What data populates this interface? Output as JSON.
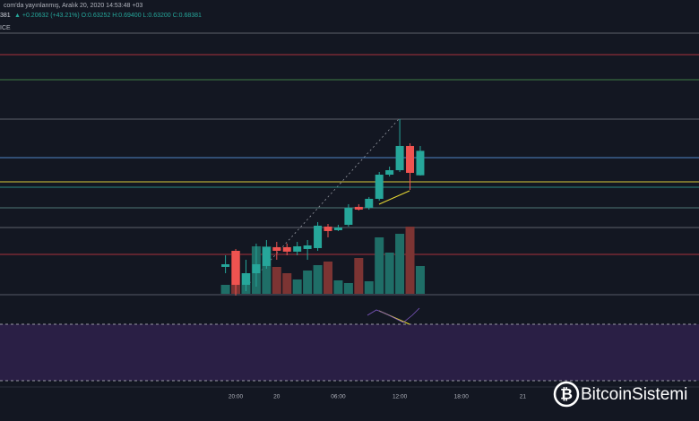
{
  "header": {
    "published": "com'da yayınlanmış, Aralık 20, 2020 14:53:48 +03",
    "last": "381",
    "change": "▲ +0.20632 (+43.21%) O:0.63252 H:0.69400 L:0.63200 C:0.68381",
    "pane_label": "ICE"
  },
  "watermark": "BitcoinSistemi",
  "chart_data": {
    "type": "candlestick",
    "categories": [
      null,
      "20:00",
      null,
      null,
      null,
      "20",
      null,
      null,
      null,
      null,
      null,
      "06:00",
      null,
      null,
      null,
      null,
      null,
      "12:00",
      null,
      null,
      null,
      null,
      null,
      "18:00",
      null,
      null,
      null,
      null,
      null,
      "21",
      null
    ],
    "open": [
      0.4402,
      0.474,
      0.4026,
      0.427,
      0.4421,
      0.4816,
      0.4816,
      0.4722,
      0.4778,
      0.4797,
      0.5248,
      0.5173,
      0.5286,
      0.5662,
      0.5643,
      0.5831,
      0.6338,
      0.6432,
      0.694,
      0.63252,
      null,
      null,
      null,
      null,
      null,
      null,
      null,
      null,
      null,
      null,
      null
    ],
    "high": [
      0.4646,
      0.4778,
      0.4552,
      0.4891,
      0.4966,
      0.4928,
      0.4891,
      0.4928,
      0.4966,
      0.5342,
      0.5304,
      0.5286,
      0.5718,
      0.5718,
      0.5869,
      0.6395,
      0.6507,
      0.7504,
      0.6996,
      0.694,
      null,
      null,
      null,
      null,
      null,
      null,
      null,
      null,
      null,
      null,
      null
    ],
    "low": [
      0.427,
      0.38,
      0.3894,
      0.3988,
      0.4364,
      0.4552,
      0.4646,
      0.4646,
      0.4552,
      0.474,
      0.5022,
      0.5154,
      0.5248,
      0.5586,
      0.5605,
      0.5793,
      0.63,
      0.6395,
      0.6019,
      0.632,
      null,
      null,
      null,
      null,
      null,
      null,
      null,
      null,
      null,
      null,
      null
    ],
    "close": [
      0.4458,
      0.4026,
      0.427,
      0.4458,
      0.4816,
      0.474,
      0.4722,
      0.4834,
      0.4853,
      0.5267,
      0.5154,
      0.5229,
      0.5643,
      0.5605,
      0.5831,
      0.6338,
      0.6432,
      0.694,
      0.6376,
      0.68381,
      null,
      null,
      null,
      null,
      null,
      null,
      null,
      null,
      null,
      null,
      null
    ],
    "volume": [
      10,
      48,
      23,
      53,
      53,
      30,
      23,
      16,
      26,
      32,
      36,
      15,
      12,
      40,
      14,
      63,
      46,
      67,
      75,
      31,
      null,
      null,
      null,
      null,
      null,
      null,
      null,
      null,
      null,
      null,
      null
    ],
    "ylim": [
      0.38,
      0.944
    ],
    "vlim": [
      0,
      100
    ],
    "up_color": "#26a69a",
    "down_color": "#ef5350",
    "up_volume_color": "#1f6e67",
    "down_volume_color": "#7c3433",
    "levels": [
      {
        "value": 0.9309,
        "color": "#5d606b"
      },
      {
        "value": 0.8858,
        "color": "#a8323c"
      },
      {
        "value": 0.8331,
        "color": "#3f7d45"
      },
      {
        "value": 0.7504,
        "color": "#5d606b"
      },
      {
        "value": 0.6696,
        "color": "#4f86c6"
      },
      {
        "value": 0.6188,
        "color": "#d8c93a"
      },
      {
        "value": 0.6075,
        "color": "#2a8a80"
      },
      {
        "value": 0.5643,
        "color": "#4f7775"
      },
      {
        "value": 0.5229,
        "color": "#5d606b"
      },
      {
        "value": 0.4665,
        "color": "#a8323c"
      }
    ]
  }
}
